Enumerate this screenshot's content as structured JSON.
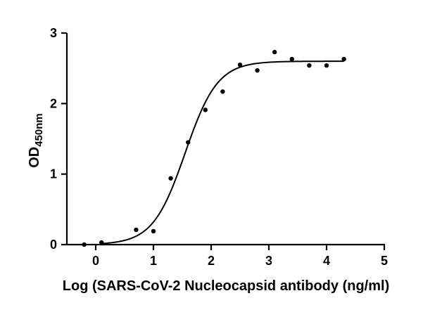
{
  "chart_data": {
    "type": "scatter",
    "xlabel": "Log (SARS-CoV-2 Nucleocapsid antibody (ng/ml)",
    "ylabel": {
      "main": "OD",
      "subscript": "450nm"
    },
    "xlim": [
      -0.5,
      5
    ],
    "ylim": [
      0,
      3
    ],
    "xticks": [
      "0",
      "1",
      "2",
      "3",
      "4",
      "5"
    ],
    "yticks": [
      "0",
      "1",
      "2",
      "3"
    ],
    "grid": false,
    "points": [
      {
        "x": -0.2,
        "y": 0.0
      },
      {
        "x": 0.1,
        "y": 0.03
      },
      {
        "x": 0.7,
        "y": 0.21
      },
      {
        "x": 1.0,
        "y": 0.19
      },
      {
        "x": 1.3,
        "y": 0.94
      },
      {
        "x": 1.6,
        "y": 1.45
      },
      {
        "x": 1.9,
        "y": 1.91
      },
      {
        "x": 2.2,
        "y": 2.17
      },
      {
        "x": 2.5,
        "y": 2.55
      },
      {
        "x": 2.8,
        "y": 2.47
      },
      {
        "x": 3.1,
        "y": 2.73
      },
      {
        "x": 3.4,
        "y": 2.63
      },
      {
        "x": 3.7,
        "y": 2.54
      },
      {
        "x": 4.0,
        "y": 2.54
      },
      {
        "x": 4.3,
        "y": 2.63
      }
    ],
    "fit": {
      "model": "sigmoidal",
      "bottom": 0.0,
      "top": 2.6,
      "log_ec50": 1.55,
      "hill_slope": 1.55,
      "x_range": [
        0.1,
        4.3
      ]
    }
  }
}
